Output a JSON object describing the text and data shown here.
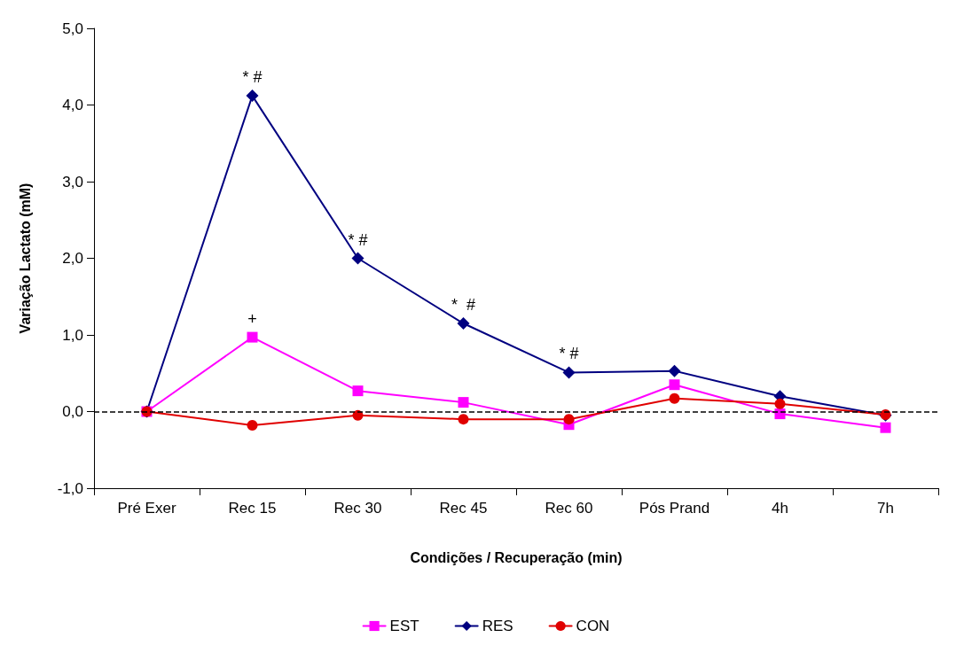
{
  "chart_data": {
    "type": "line",
    "xlabel": "Condições / Recuperação (min)",
    "ylabel": "Variação Lactato (mM)",
    "categories": [
      "Pré Exer",
      "Rec 15",
      "Rec 30",
      "Rec 45",
      "Rec 60",
      "Pós Prand",
      "4h",
      "7h"
    ],
    "series": [
      {
        "name": "EST",
        "color": "#ff00ff",
        "marker": "square",
        "values": [
          0,
          0.97,
          0.27,
          0.12,
          -0.17,
          0.35,
          -0.03,
          -0.21
        ]
      },
      {
        "name": "RES",
        "color": "#000080",
        "marker": "diamond",
        "values": [
          0,
          4.12,
          2.0,
          1.15,
          0.51,
          0.53,
          0.2,
          -0.05
        ]
      },
      {
        "name": "CON",
        "color": "#e00000",
        "marker": "circle",
        "values": [
          0,
          -0.18,
          -0.05,
          -0.1,
          -0.1,
          0.17,
          0.1,
          -0.04
        ]
      }
    ],
    "ylim": [
      -1,
      5
    ],
    "yticks": [
      {
        "value": -1,
        "label": "-1,0"
      },
      {
        "value": 0,
        "label": "0,0"
      },
      {
        "value": 1,
        "label": "1,0"
      },
      {
        "value": 2,
        "label": "2,0"
      },
      {
        "value": 3,
        "label": "3,0"
      },
      {
        "value": 4,
        "label": "4,0"
      },
      {
        "value": 5,
        "label": "5,0"
      }
    ],
    "ref_lines": [
      {
        "axis": "y",
        "value": 0,
        "color": "#000000",
        "line_style": "dashed"
      }
    ],
    "annotations": [
      {
        "text": "* #",
        "x": "Rec 15",
        "y": 4.12
      },
      {
        "text": "+",
        "x": "Rec 15",
        "y": 0.97
      },
      {
        "text": "* #",
        "x": "Rec 30",
        "y": 2.0
      },
      {
        "text": "*  #",
        "x": "Rec 45",
        "y": 1.15
      },
      {
        "text": "* #",
        "x": "Rec 60",
        "y": 0.51
      }
    ],
    "grid": false,
    "legend": "bottom",
    "line_style": "solid"
  }
}
